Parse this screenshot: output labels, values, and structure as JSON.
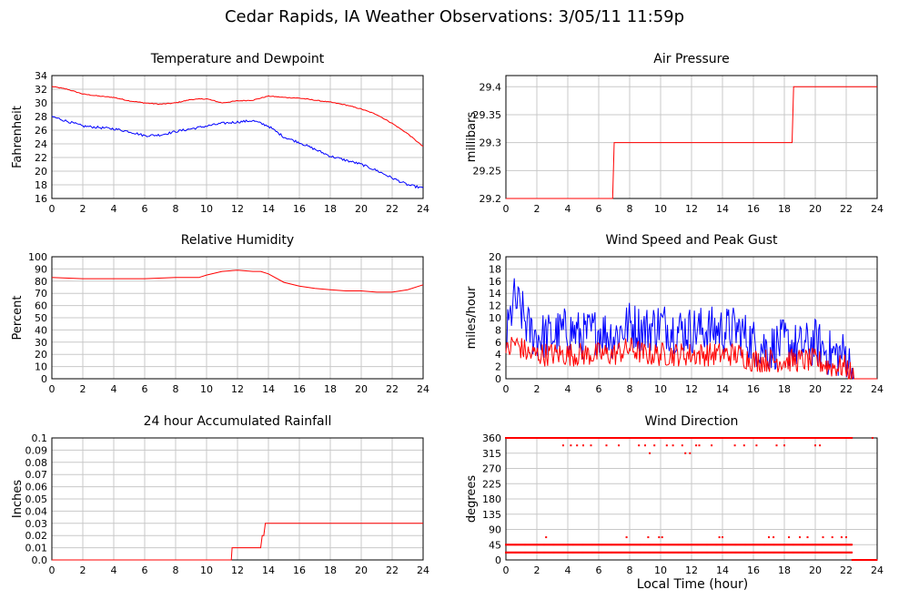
{
  "title": "Cedar Rapids, IA Weather Observations: 3/05/11 11:59p",
  "shared_xlabel": "Local Time (hour)",
  "colors": {
    "temperature": "#ff0000",
    "dewpoint": "#0000ff",
    "grid": "#c8c8c8"
  },
  "chart_data": [
    {
      "id": "temp",
      "type": "line",
      "title": "Temperature and Dewpoint",
      "ylabel": "Fahrenheit",
      "xlim": [
        0,
        24
      ],
      "ylim": [
        16,
        34
      ],
      "xticks": [
        "0",
        "2",
        "4",
        "6",
        "8",
        "10",
        "12",
        "14",
        "16",
        "18",
        "20",
        "22",
        "24"
      ],
      "yticks": [
        "16",
        "18",
        "20",
        "22",
        "24",
        "26",
        "28",
        "30",
        "32",
        "34"
      ],
      "grid": true,
      "series": [
        {
          "color": "#ff0000",
          "x": [
            0,
            1,
            2,
            3,
            4,
            5,
            6,
            7,
            8,
            9,
            10,
            11,
            12,
            13,
            14,
            15,
            16,
            17,
            18,
            19,
            20,
            21,
            22,
            23,
            24
          ],
          "y": [
            32.4,
            32.0,
            31.3,
            31.0,
            30.8,
            30.3,
            30.0,
            29.8,
            30.0,
            30.5,
            30.6,
            30.0,
            30.3,
            30.4,
            31.0,
            30.8,
            30.7,
            30.4,
            30.1,
            29.7,
            29.1,
            28.3,
            27.0,
            25.5,
            23.6
          ]
        },
        {
          "color": "#0000ff",
          "x": [
            0,
            1,
            2,
            3,
            4,
            5,
            6,
            7,
            8,
            9,
            10,
            11,
            12,
            13,
            14,
            15,
            16,
            17,
            18,
            19,
            20,
            21,
            22,
            23,
            24
          ],
          "y": [
            28.0,
            27.3,
            26.6,
            26.4,
            26.2,
            25.8,
            25.2,
            25.3,
            25.8,
            26.2,
            26.6,
            27.0,
            27.2,
            27.4,
            26.6,
            25.0,
            24.2,
            23.2,
            22.2,
            21.6,
            21.0,
            20.1,
            19.0,
            18.0,
            17.5
          ]
        }
      ]
    },
    {
      "id": "pressure",
      "type": "line",
      "title": "Air Pressure",
      "ylabel": "millibars",
      "xlim": [
        0,
        24
      ],
      "ylim": [
        29.2,
        29.42
      ],
      "xticks": [
        "0",
        "2",
        "4",
        "6",
        "8",
        "10",
        "12",
        "14",
        "16",
        "18",
        "20",
        "22",
        "24"
      ],
      "yticks": [
        "29.2",
        "29.25",
        "29.3",
        "29.35",
        "29.4"
      ],
      "grid": true,
      "series": [
        {
          "color": "#ff0000",
          "x": [
            0,
            6.9,
            7.0,
            18.5,
            18.6,
            24
          ],
          "y": [
            29.2,
            29.2,
            29.3,
            29.3,
            29.4,
            29.4
          ]
        }
      ]
    },
    {
      "id": "rh",
      "type": "line",
      "title": "Relative Humidity",
      "ylabel": "Percent",
      "xlim": [
        0,
        24
      ],
      "ylim": [
        0,
        100
      ],
      "xticks": [
        "0",
        "2",
        "4",
        "6",
        "8",
        "10",
        "12",
        "14",
        "16",
        "18",
        "20",
        "22",
        "24"
      ],
      "yticks": [
        "0",
        "10",
        "20",
        "30",
        "40",
        "50",
        "60",
        "70",
        "80",
        "90",
        "100"
      ],
      "grid": true,
      "series": [
        {
          "color": "#ff0000",
          "x": [
            0,
            2,
            4,
            6,
            8,
            9.5,
            10,
            11,
            12,
            13,
            13.5,
            14,
            15,
            16,
            17,
            18,
            19,
            20,
            21,
            22,
            23,
            24
          ],
          "y": [
            83,
            82,
            82,
            82,
            83,
            83,
            85,
            88,
            89,
            88,
            88,
            86,
            79,
            76,
            74,
            73,
            72,
            72,
            71,
            71,
            73,
            77
          ]
        }
      ]
    },
    {
      "id": "wind",
      "type": "line",
      "title": "Wind Speed and Peak Gust",
      "ylabel": "miles/hour",
      "xlim": [
        0,
        24
      ],
      "ylim": [
        0,
        20
      ],
      "xticks": [
        "0",
        "2",
        "4",
        "6",
        "8",
        "10",
        "12",
        "14",
        "16",
        "18",
        "20",
        "22",
        "24"
      ],
      "yticks": [
        "0",
        "2",
        "4",
        "6",
        "8",
        "10",
        "12",
        "14",
        "16",
        "18",
        "20"
      ],
      "grid": true,
      "series": [
        {
          "color": "#0000ff",
          "x": [
            0,
            0.5,
            1,
            1.5,
            2,
            3,
            4,
            5,
            6,
            7,
            8,
            9,
            10,
            11,
            12,
            13,
            14,
            15,
            16,
            17,
            18,
            19,
            20,
            21,
            22,
            22.5,
            23,
            24
          ],
          "y": [
            6,
            13,
            11,
            8,
            7,
            7,
            8,
            7,
            8,
            7,
            9,
            8,
            9,
            8,
            8,
            8,
            8,
            8,
            6,
            5,
            6,
            5,
            6,
            4,
            4,
            0,
            0,
            0
          ]
        },
        {
          "color": "#ff0000",
          "x": [
            0,
            0.5,
            1,
            1.5,
            2,
            3,
            4,
            5,
            6,
            7,
            8,
            9,
            10,
            11,
            12,
            13,
            14,
            15,
            16,
            17,
            18,
            19,
            20,
            21,
            22,
            22.5,
            23,
            24
          ],
          "y": [
            4,
            6,
            5,
            4,
            4,
            4,
            4,
            4,
            4,
            4,
            5,
            4,
            4,
            4,
            4,
            4,
            4,
            4,
            3,
            3,
            3,
            3,
            3,
            2,
            2,
            0,
            0,
            0
          ]
        }
      ]
    },
    {
      "id": "rain",
      "type": "line",
      "title": "24 hour Accumulated Rainfall",
      "ylabel": "Inches",
      "xlim": [
        0,
        24
      ],
      "ylim": [
        0,
        0.1
      ],
      "xticks": [
        "0",
        "2",
        "4",
        "6",
        "8",
        "10",
        "12",
        "14",
        "16",
        "18",
        "20",
        "22",
        "24"
      ],
      "yticks": [
        "0.0",
        "0.01",
        "0.02",
        "0.03",
        "0.04",
        "0.05",
        "0.06",
        "0.07",
        "0.08",
        "0.09",
        "0.1"
      ],
      "grid": true,
      "series": [
        {
          "color": "#ff0000",
          "x": [
            0,
            11.6,
            11.65,
            13.5,
            13.6,
            13.7,
            13.8,
            24
          ],
          "y": [
            0,
            0,
            0.01,
            0.01,
            0.02,
            0.02,
            0.03,
            0.03
          ]
        }
      ]
    },
    {
      "id": "winddir",
      "type": "scatter",
      "title": "Wind Direction",
      "ylabel": "degrees",
      "xlim": [
        0,
        24
      ],
      "ylim": [
        0,
        360
      ],
      "xticks": [
        "0",
        "2",
        "4",
        "6",
        "8",
        "10",
        "12",
        "14",
        "16",
        "18",
        "20",
        "22",
        "24"
      ],
      "yticks": [
        "0",
        "45",
        "90",
        "135",
        "180",
        "225",
        "270",
        "315",
        "360"
      ],
      "grid": true,
      "series": [
        {
          "color": "#ff0000",
          "bands": [
            {
              "value": 360,
              "from": 0,
              "to": 22.4
            },
            {
              "value": 22,
              "from": 0,
              "to": 22.4
            },
            {
              "value": 45,
              "from": 0,
              "to": 22.4
            },
            {
              "value": 0,
              "from": 22.4,
              "to": 24
            }
          ],
          "points": [
            [
              2.6,
              67
            ],
            [
              3.7,
              338
            ],
            [
              4.2,
              338
            ],
            [
              4.6,
              338
            ],
            [
              5.0,
              338
            ],
            [
              5.5,
              338
            ],
            [
              6.5,
              338
            ],
            [
              7.3,
              338
            ],
            [
              7.8,
              67
            ],
            [
              8.6,
              338
            ],
            [
              9.0,
              338
            ],
            [
              9.2,
              67
            ],
            [
              9.3,
              315
            ],
            [
              9.6,
              338
            ],
            [
              9.9,
              67
            ],
            [
              10.1,
              67
            ],
            [
              10.4,
              338
            ],
            [
              10.8,
              338
            ],
            [
              11.4,
              338
            ],
            [
              11.6,
              315
            ],
            [
              11.9,
              315
            ],
            [
              12.3,
              338
            ],
            [
              12.5,
              338
            ],
            [
              13.3,
              338
            ],
            [
              13.8,
              67
            ],
            [
              14.0,
              67
            ],
            [
              14.8,
              338
            ],
            [
              15.4,
              338
            ],
            [
              16.2,
              338
            ],
            [
              17.0,
              67
            ],
            [
              17.3,
              67
            ],
            [
              17.5,
              338
            ],
            [
              18.0,
              338
            ],
            [
              18.3,
              67
            ],
            [
              19.0,
              67
            ],
            [
              19.5,
              67
            ],
            [
              20.0,
              338
            ],
            [
              20.3,
              338
            ],
            [
              20.5,
              67
            ],
            [
              21.1,
              67
            ],
            [
              21.7,
              67
            ],
            [
              22.0,
              67
            ],
            [
              23.7,
              360
            ]
          ]
        }
      ]
    }
  ]
}
